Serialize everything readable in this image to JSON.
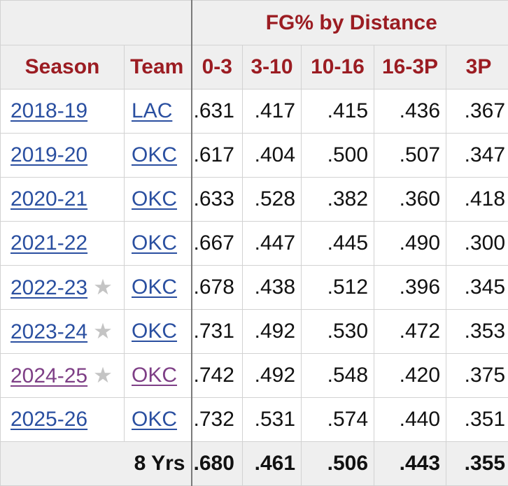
{
  "table": {
    "over_header": "FG% by Distance",
    "headers": {
      "season": "Season",
      "team": "Team",
      "d0_3": "0-3",
      "d3_10": "3-10",
      "d10_16": "10-16",
      "d16_3p": "16-3P",
      "d3p": "3P"
    },
    "star_glyph": "★",
    "rows": [
      {
        "season": "2018-19",
        "team": "LAC",
        "d0_3": ".631",
        "d3_10": ".417",
        "d10_16": ".415",
        "d16_3p": ".436",
        "d3p": ".367",
        "star": false
      },
      {
        "season": "2019-20",
        "team": "OKC",
        "d0_3": ".617",
        "d3_10": ".404",
        "d10_16": ".500",
        "d16_3p": ".507",
        "d3p": ".347",
        "star": false
      },
      {
        "season": "2020-21",
        "team": "OKC",
        "d0_3": ".633",
        "d3_10": ".528",
        "d10_16": ".382",
        "d16_3p": ".360",
        "d3p": ".418",
        "star": false
      },
      {
        "season": "2021-22",
        "team": "OKC",
        "d0_3": ".667",
        "d3_10": ".447",
        "d10_16": ".445",
        "d16_3p": ".490",
        "d3p": ".300",
        "star": false
      },
      {
        "season": "2022-23",
        "team": "OKC",
        "d0_3": ".678",
        "d3_10": ".438",
        "d10_16": ".512",
        "d16_3p": ".396",
        "d3p": ".345",
        "star": true
      },
      {
        "season": "2023-24",
        "team": "OKC",
        "d0_3": ".731",
        "d3_10": ".492",
        "d10_16": ".530",
        "d16_3p": ".472",
        "d3p": ".353",
        "star": true
      },
      {
        "season": "2024-25",
        "team": "OKC",
        "d0_3": ".742",
        "d3_10": ".492",
        "d10_16": ".548",
        "d16_3p": ".420",
        "d3p": ".375",
        "star": true
      },
      {
        "season": "2025-26",
        "team": "OKC",
        "d0_3": ".732",
        "d3_10": ".531",
        "d10_16": ".574",
        "d16_3p": ".440",
        "d3p": ".351",
        "star": false
      }
    ],
    "total": {
      "label": "8 Yrs",
      "d0_3": ".680",
      "d3_10": ".461",
      "d10_16": ".506",
      "d16_3p": ".443",
      "d3p": ".355"
    }
  },
  "colors": {
    "header_text": "#9b1c22",
    "link": "#2a4fa0",
    "visited_link": "#7e3f86",
    "header_bg": "#efefef",
    "star": "#c4c4c4"
  }
}
